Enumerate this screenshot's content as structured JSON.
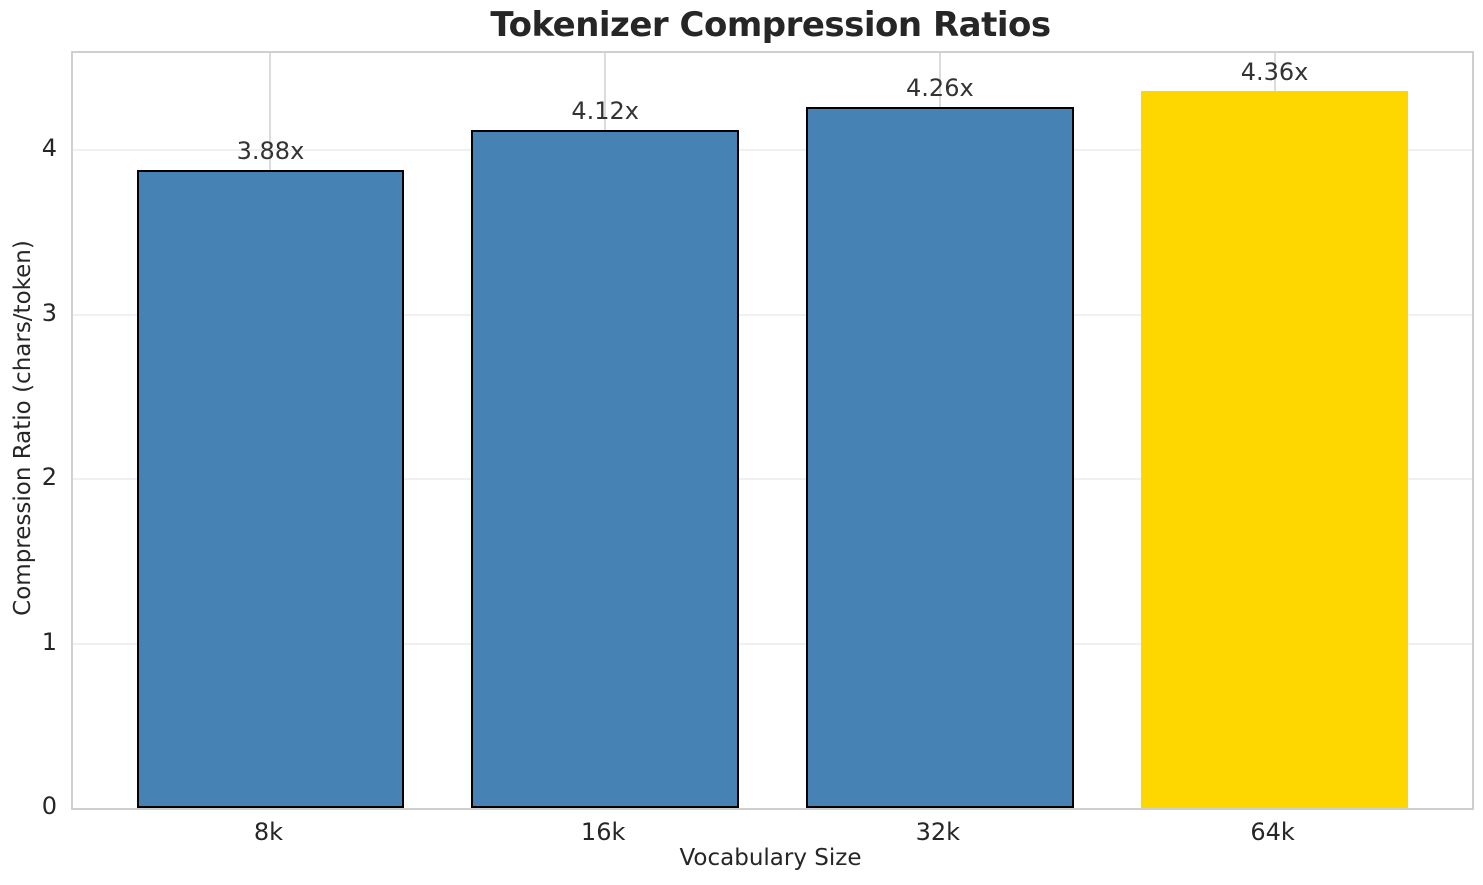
{
  "figure": {
    "background_color": "#ffffff",
    "spine_color": "#cfcfcf",
    "gridline_h_color": "#f0f0f0",
    "gridline_v_color": "#dcdcdc",
    "text_color": "#262626"
  },
  "chart_data": {
    "type": "bar",
    "title": "Tokenizer Compression Ratios",
    "xlabel": "Vocabulary Size",
    "ylabel": "Compression Ratio (chars/token)",
    "categories": [
      "8k",
      "16k",
      "32k",
      "64k"
    ],
    "values": [
      3.88,
      4.12,
      4.26,
      4.36
    ],
    "bar_labels": [
      "3.88x",
      "4.12x",
      "4.26x",
      "4.36x"
    ],
    "bar_colors": [
      "#4682b4",
      "#4682b4",
      "#4682b4",
      "#ffd700"
    ],
    "bar_edge_colors": [
      "#000000",
      "#000000",
      "#000000",
      "none"
    ],
    "default_bar_color": "#4682b4",
    "highlight_bar_color": "#ffd700",
    "yticks": [
      0,
      1,
      2,
      3,
      4
    ],
    "ylim": [
      0,
      4.59
    ],
    "bar_width_fraction": 0.8,
    "grid": true,
    "legend_position": "none"
  }
}
